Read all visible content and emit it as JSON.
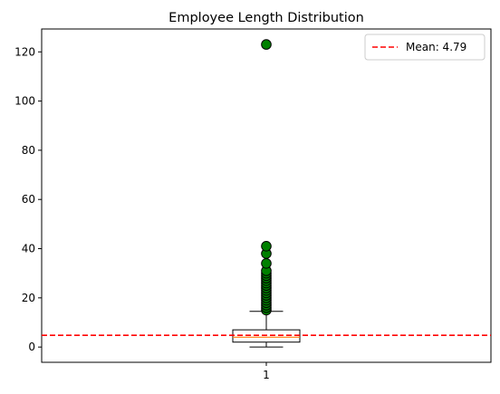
{
  "chart_data": {
    "type": "box",
    "title": "Employee Length Distribution",
    "xlabel": "",
    "ylabel": "",
    "categories": [
      "1"
    ],
    "ylim": [
      -6.2,
      129.3
    ],
    "yticks": [
      0,
      20,
      40,
      60,
      80,
      100,
      120
    ],
    "ytick_labels": [
      "0",
      "20",
      "40",
      "60",
      "80",
      "100",
      "120"
    ],
    "xtick_labels": [
      "1"
    ],
    "box": {
      "whisker_low": 0,
      "q1": 2,
      "median": 4,
      "q3": 7,
      "whisker_high": 14.5
    },
    "outliers": [
      15,
      16,
      17,
      18,
      19,
      20,
      21,
      22,
      23,
      24,
      25,
      26,
      27,
      28,
      29,
      30,
      31,
      34,
      38,
      41,
      123
    ],
    "mean_line": {
      "value": 4.79,
      "label": "Mean: 4.79",
      "color": "#ff0000",
      "style": "dashed"
    },
    "colors": {
      "box": "#000000",
      "median": "#ff7f0e",
      "outlier_fill": "#008000",
      "outlier_edge": "#000000"
    },
    "grid": false,
    "legend_position": "top-right"
  }
}
